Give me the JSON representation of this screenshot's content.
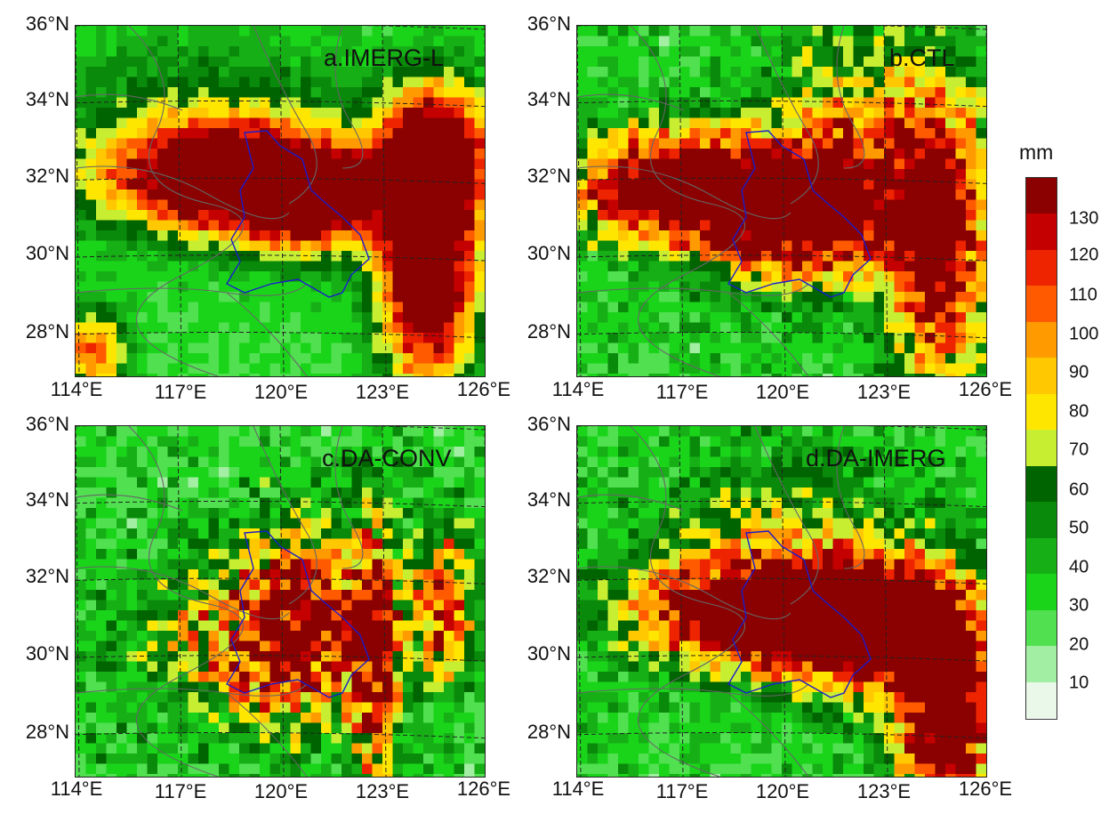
{
  "panels": [
    {
      "id": "a",
      "title": "a.IMERG-L",
      "pattern": "imerg"
    },
    {
      "id": "b",
      "title": "b.CTL",
      "pattern": "ctl"
    },
    {
      "id": "c",
      "title": "c.DA-CONV",
      "pattern": "conv"
    },
    {
      "id": "d",
      "title": "d.DA-IMERG",
      "pattern": "daimerg"
    }
  ],
  "lat_labels": [
    "36°N",
    "34°N",
    "32°N",
    "30°N",
    "28°N"
  ],
  "lon_labels": [
    "114°E",
    "117°E",
    "120°E",
    "123°E",
    "126°E"
  ],
  "colorbar": {
    "unit": "mm",
    "labels": [
      "130",
      "120",
      "110",
      "100",
      "90",
      "80",
      "70",
      "60",
      "50",
      "40",
      "30",
      "20",
      "10"
    ],
    "colors": [
      "#8b0000",
      "#c40000",
      "#ee2400",
      "#ff5a00",
      "#ff9a00",
      "#ffc800",
      "#ffe600",
      "#c8ee32",
      "#006400",
      "#0a8a0a",
      "#16b016",
      "#1ad41a",
      "#50e050",
      "#a2eea2",
      "#e9f8e9"
    ]
  }
}
